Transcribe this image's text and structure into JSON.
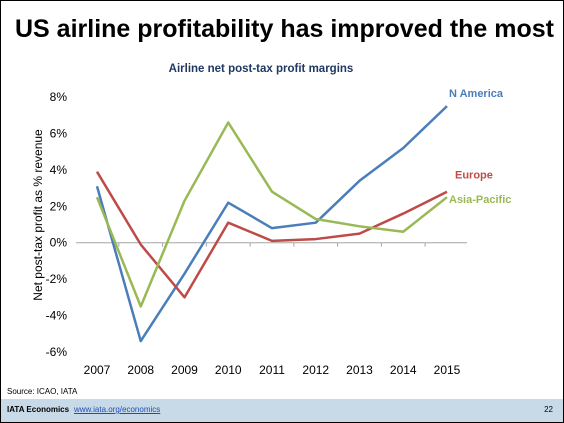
{
  "slide": {
    "title": "US airline profitability has improved the most",
    "source": "Source: ICAO, IATA",
    "footer_brand": "IATA Economics",
    "footer_link": "www.iata.org/economics",
    "page_number": "22"
  },
  "chart_data": {
    "type": "line",
    "title": "Airline net post-tax profit margins",
    "xlabel": "",
    "ylabel": "Net post-tax profit as % revenue",
    "categories": [
      "2007",
      "2008",
      "2009",
      "2010",
      "2011",
      "2012",
      "2013",
      "2014",
      "2015"
    ],
    "ylim": [
      -6,
      8
    ],
    "yticks": [
      "8%",
      "6%",
      "4%",
      "2%",
      "0%",
      "-2%",
      "-4%",
      "-6%"
    ],
    "ytick_values": [
      8,
      6,
      4,
      2,
      0,
      -2,
      -4,
      -6
    ],
    "grid": false,
    "series": [
      {
        "name": "N America",
        "color": "#4a7ebb",
        "values": [
          3.1,
          -5.4,
          -1.7,
          2.2,
          0.8,
          1.1,
          3.4,
          5.2,
          7.5
        ]
      },
      {
        "name": "Europe",
        "color": "#be4b48",
        "values": [
          3.9,
          -0.1,
          -3.0,
          1.1,
          0.1,
          0.2,
          0.5,
          1.6,
          2.8
        ]
      },
      {
        "name": "Asia-Pacific",
        "color": "#98b954",
        "values": [
          2.5,
          -3.5,
          2.3,
          6.6,
          2.8,
          1.3,
          0.9,
          0.6,
          2.5
        ]
      }
    ]
  }
}
